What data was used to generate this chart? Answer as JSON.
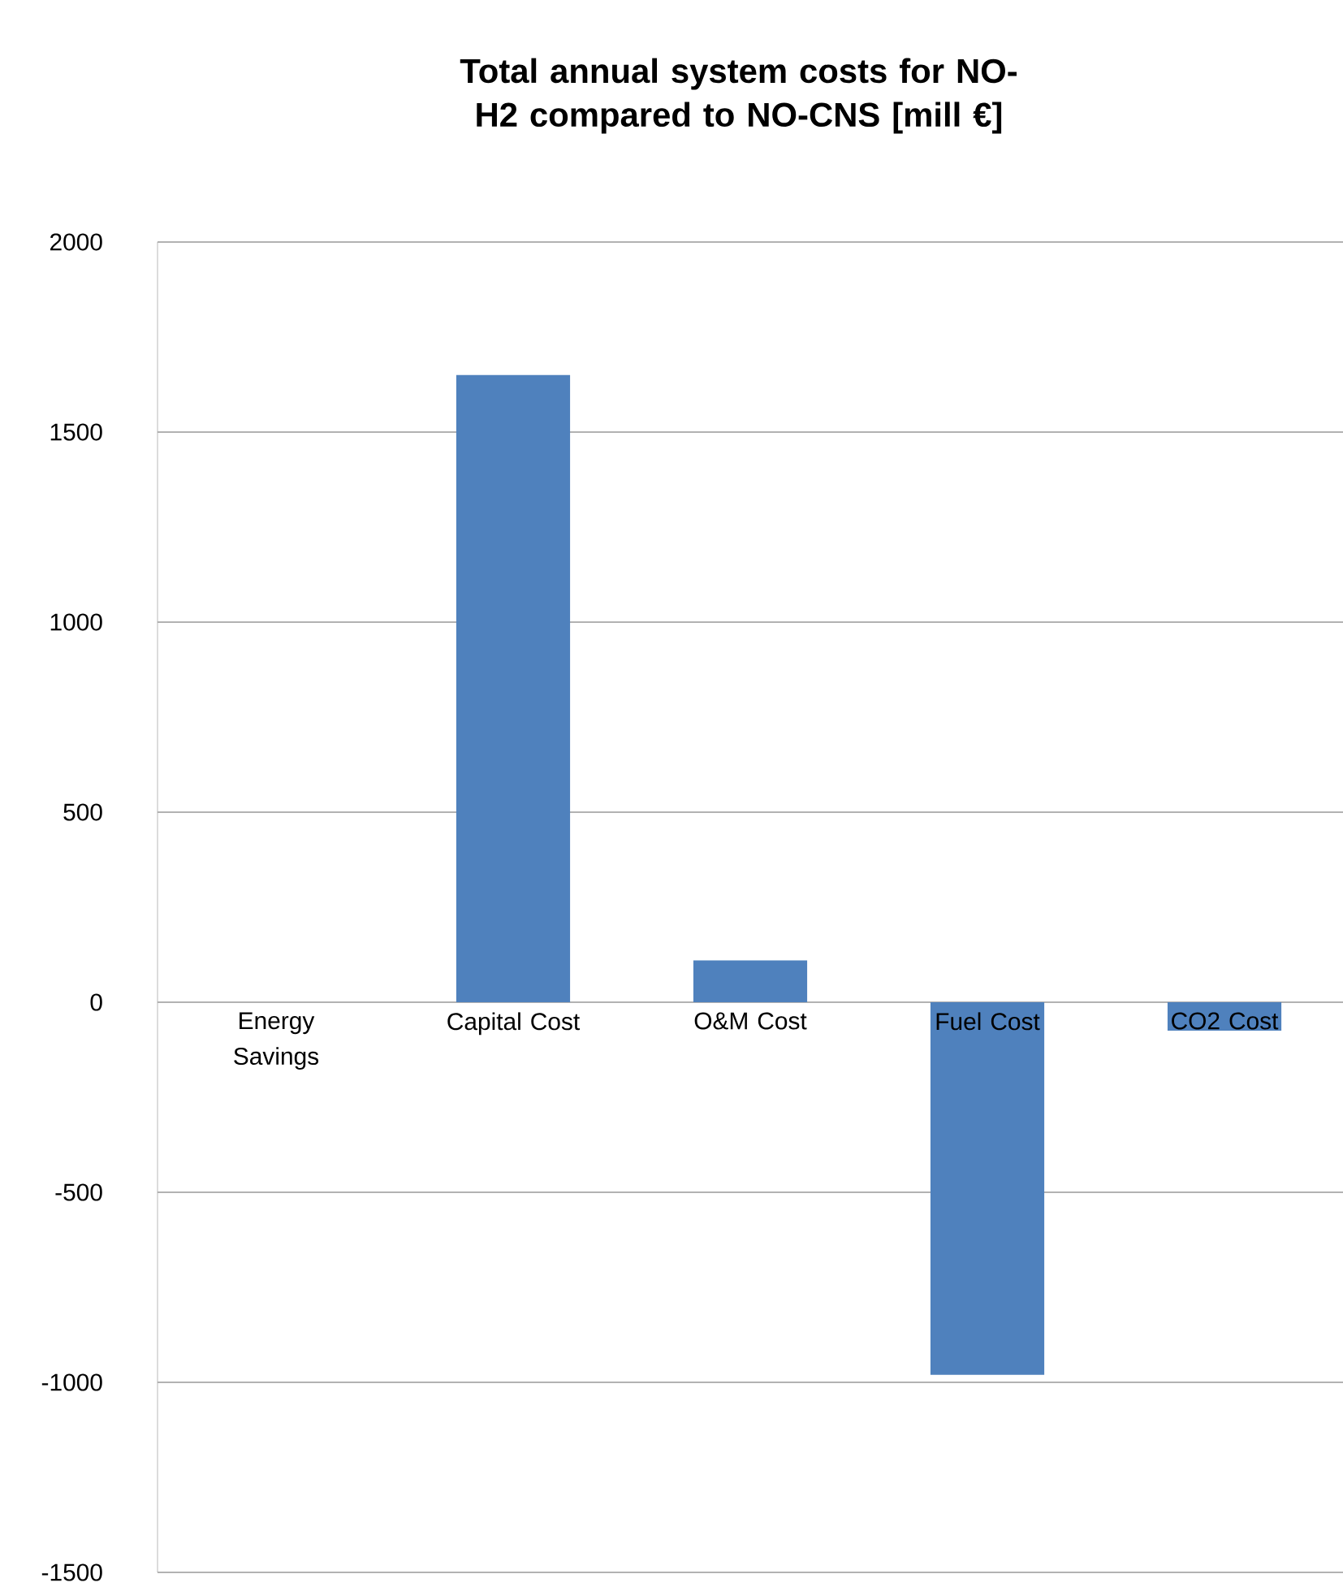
{
  "chart_data": {
    "type": "bar",
    "title": "Total annual system costs for NO-H2 compared to NO-CNS [mill €]",
    "categories": [
      "Energy Savings",
      "Capital Cost",
      "O&M Cost",
      "Fuel Cost",
      "CO2 Cost"
    ],
    "values": [
      0,
      1650,
      110,
      -980,
      -75
    ],
    "color": "#4f81bd",
    "ylim": [
      -1500,
      2000
    ],
    "yticks": [
      -1500,
      -1000,
      -500,
      0,
      500,
      1000,
      1500,
      2000
    ],
    "grid": "y"
  }
}
